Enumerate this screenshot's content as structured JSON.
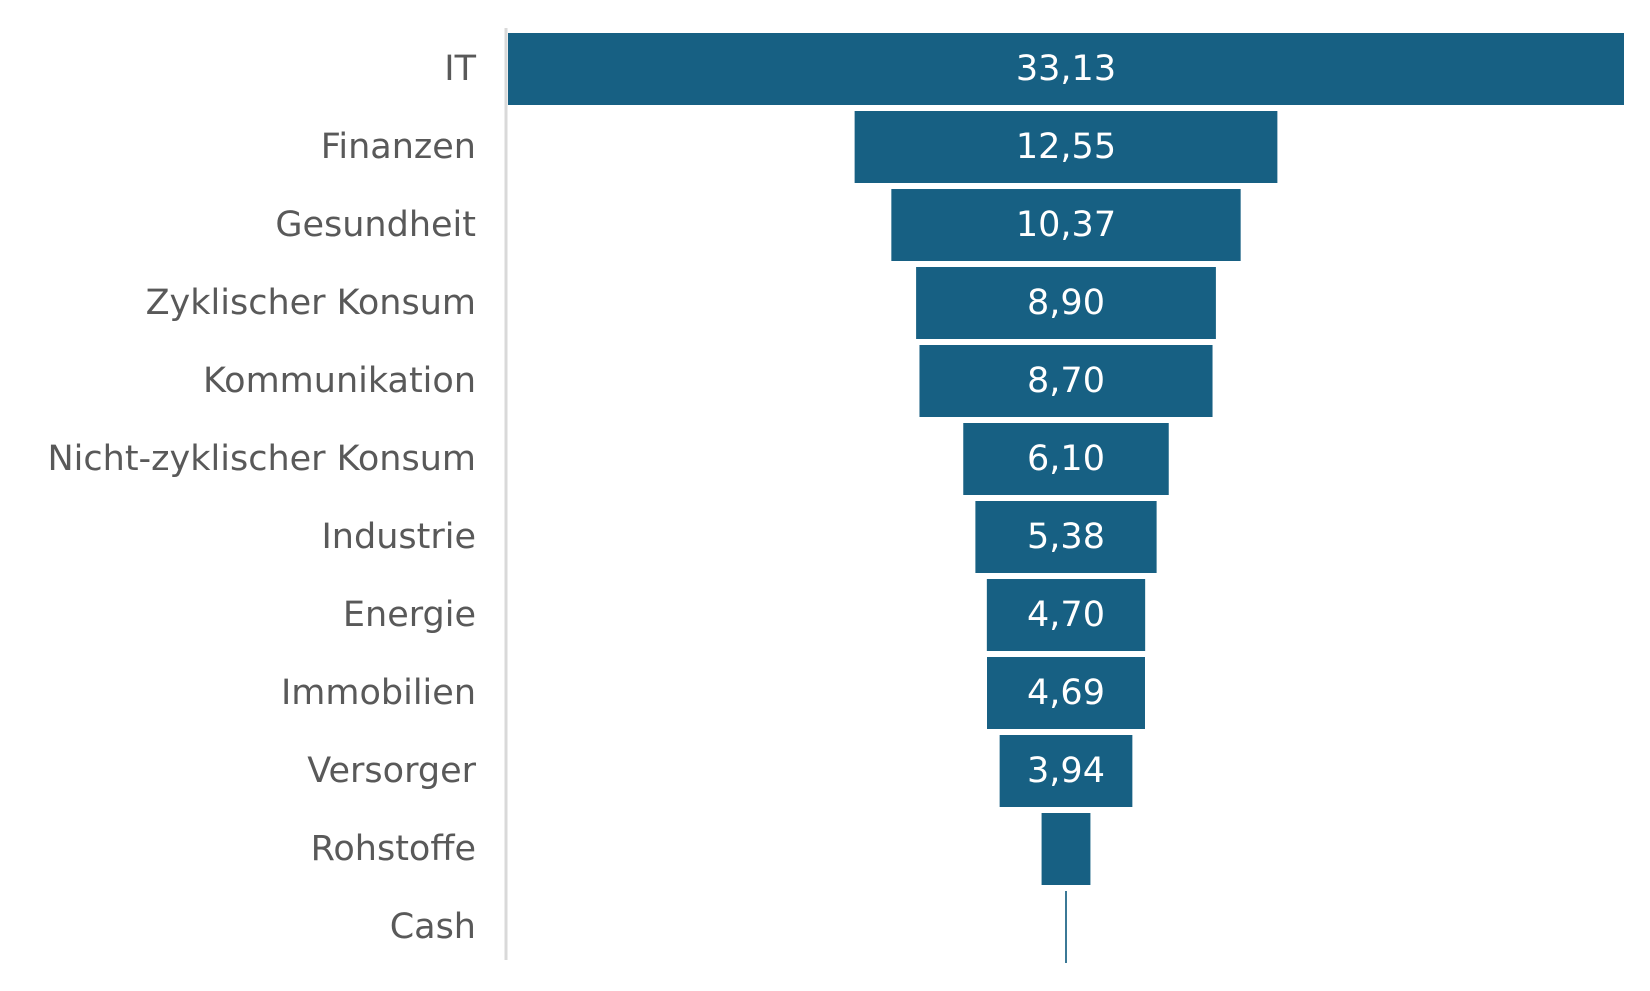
{
  "chart_data": {
    "type": "bar",
    "subtype": "funnel",
    "orientation": "horizontal",
    "categories": [
      "IT",
      "Finanzen",
      "Gesundheit",
      "Zyklischer Konsum",
      "Kommunikation",
      "Nicht-zyklischer Konsum",
      "Industrie",
      "Energie",
      "Immobilien",
      "Versorger",
      "Rohstoffe",
      "Cash"
    ],
    "values": [
      33.13,
      12.55,
      10.37,
      8.9,
      8.7,
      6.1,
      5.38,
      4.7,
      4.69,
      3.94,
      1.45,
      0.05
    ],
    "value_labels": [
      "33,13",
      "12,55",
      "10,37",
      "8,90",
      "8,70",
      "6,10",
      "5,38",
      "4,70",
      "4,69",
      "3,94",
      "",
      ""
    ],
    "title": "",
    "xlabel": "",
    "ylabel": "",
    "grid": false,
    "legend": "none",
    "colors": {
      "bar": "#176083",
      "category_text": "#595959",
      "value_text": "#ffffff",
      "axis": "#d9d9d9"
    }
  }
}
